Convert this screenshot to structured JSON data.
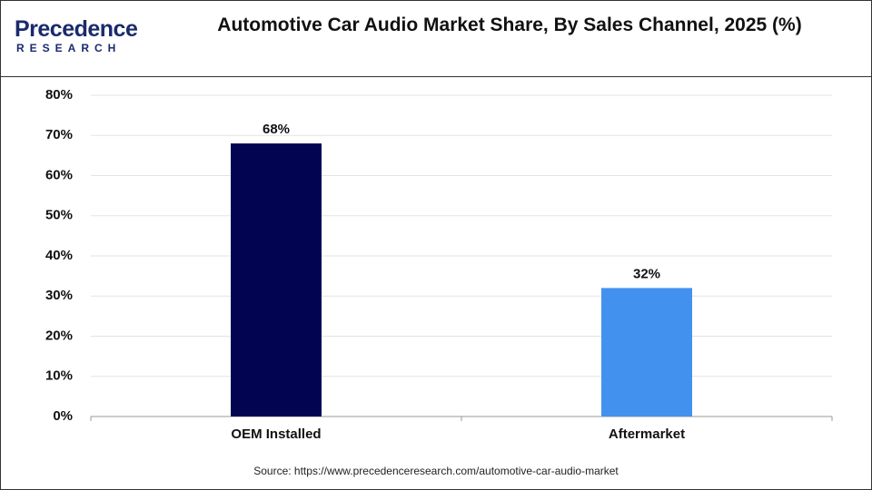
{
  "logo": {
    "line1": "Precedence",
    "line2": "RESEARCH"
  },
  "chart_data": {
    "type": "bar",
    "title": "Automotive Car Audio Market Share, By Sales Channel, 2025 (%)",
    "categories": [
      "OEM Installed",
      "Aftermarket"
    ],
    "values": [
      68,
      32
    ],
    "value_labels": [
      "68%",
      "32%"
    ],
    "colors": [
      "#020452",
      "#4391ee"
    ],
    "ylim": [
      0,
      80
    ],
    "yticks": [
      {
        "value": 0,
        "label": "0%"
      },
      {
        "value": 10,
        "label": "10%"
      },
      {
        "value": 20,
        "label": "20%"
      },
      {
        "value": 30,
        "label": "30%"
      },
      {
        "value": 40,
        "label": "40%"
      },
      {
        "value": 50,
        "label": "50%"
      },
      {
        "value": 60,
        "label": "60%"
      },
      {
        "value": 70,
        "label": "70%"
      },
      {
        "value": 80,
        "label": "80%"
      }
    ],
    "grid": true,
    "source": "Source: https://www.precedenceresearch.com/automotive-car-audio-market"
  }
}
